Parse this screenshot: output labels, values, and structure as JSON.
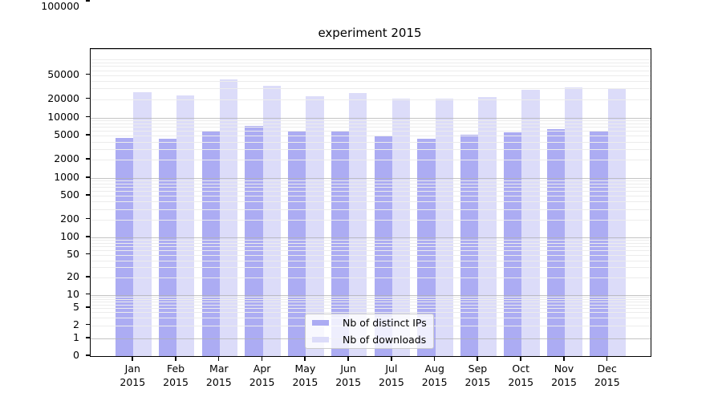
{
  "title": "experiment 2015",
  "legend": [
    {
      "label": "Nb of distinct IPs",
      "color": "#acacf3"
    },
    {
      "label": "Nb of downloads",
      "color": "#dcdcf9"
    }
  ],
  "colors": {
    "bar_distinct_ips": "#acacf3",
    "bar_downloads": "#dcdcf9",
    "grid_major": "#b0b0b0",
    "grid_minor": "#ececec",
    "frame": "#000000"
  },
  "chart_data": {
    "type": "bar",
    "title": "experiment 2015",
    "xlabel": "",
    "ylabel": "",
    "yscale": "symlog",
    "grid": true,
    "legend_position": "lower center",
    "ylim": [
      0,
      130000
    ],
    "y_ticks": [
      0,
      1,
      2,
      5,
      10,
      20,
      50,
      100,
      200,
      500,
      1000,
      2000,
      5000,
      10000,
      20000,
      50000,
      100000
    ],
    "categories": [
      "Jan 2015",
      "Feb 2015",
      "Mar 2015",
      "Apr 2015",
      "May 2015",
      "Jun 2015",
      "Jul 2015",
      "Aug 2015",
      "Sep 2015",
      "Oct 2015",
      "Nov 2015",
      "Dec 2015"
    ],
    "series": [
      {
        "name": "Nb of distinct IPs",
        "color": "#acacf3",
        "values": [
          4600,
          4500,
          6000,
          7200,
          6100,
          6100,
          4900,
          4450,
          5250,
          5650,
          6450,
          6150
        ]
      },
      {
        "name": "Nb of downloads",
        "color": "#dcdcf9",
        "values": [
          26000,
          23000,
          43000,
          33500,
          22500,
          25500,
          20300,
          20300,
          21800,
          28600,
          31600,
          30700
        ]
      }
    ]
  }
}
